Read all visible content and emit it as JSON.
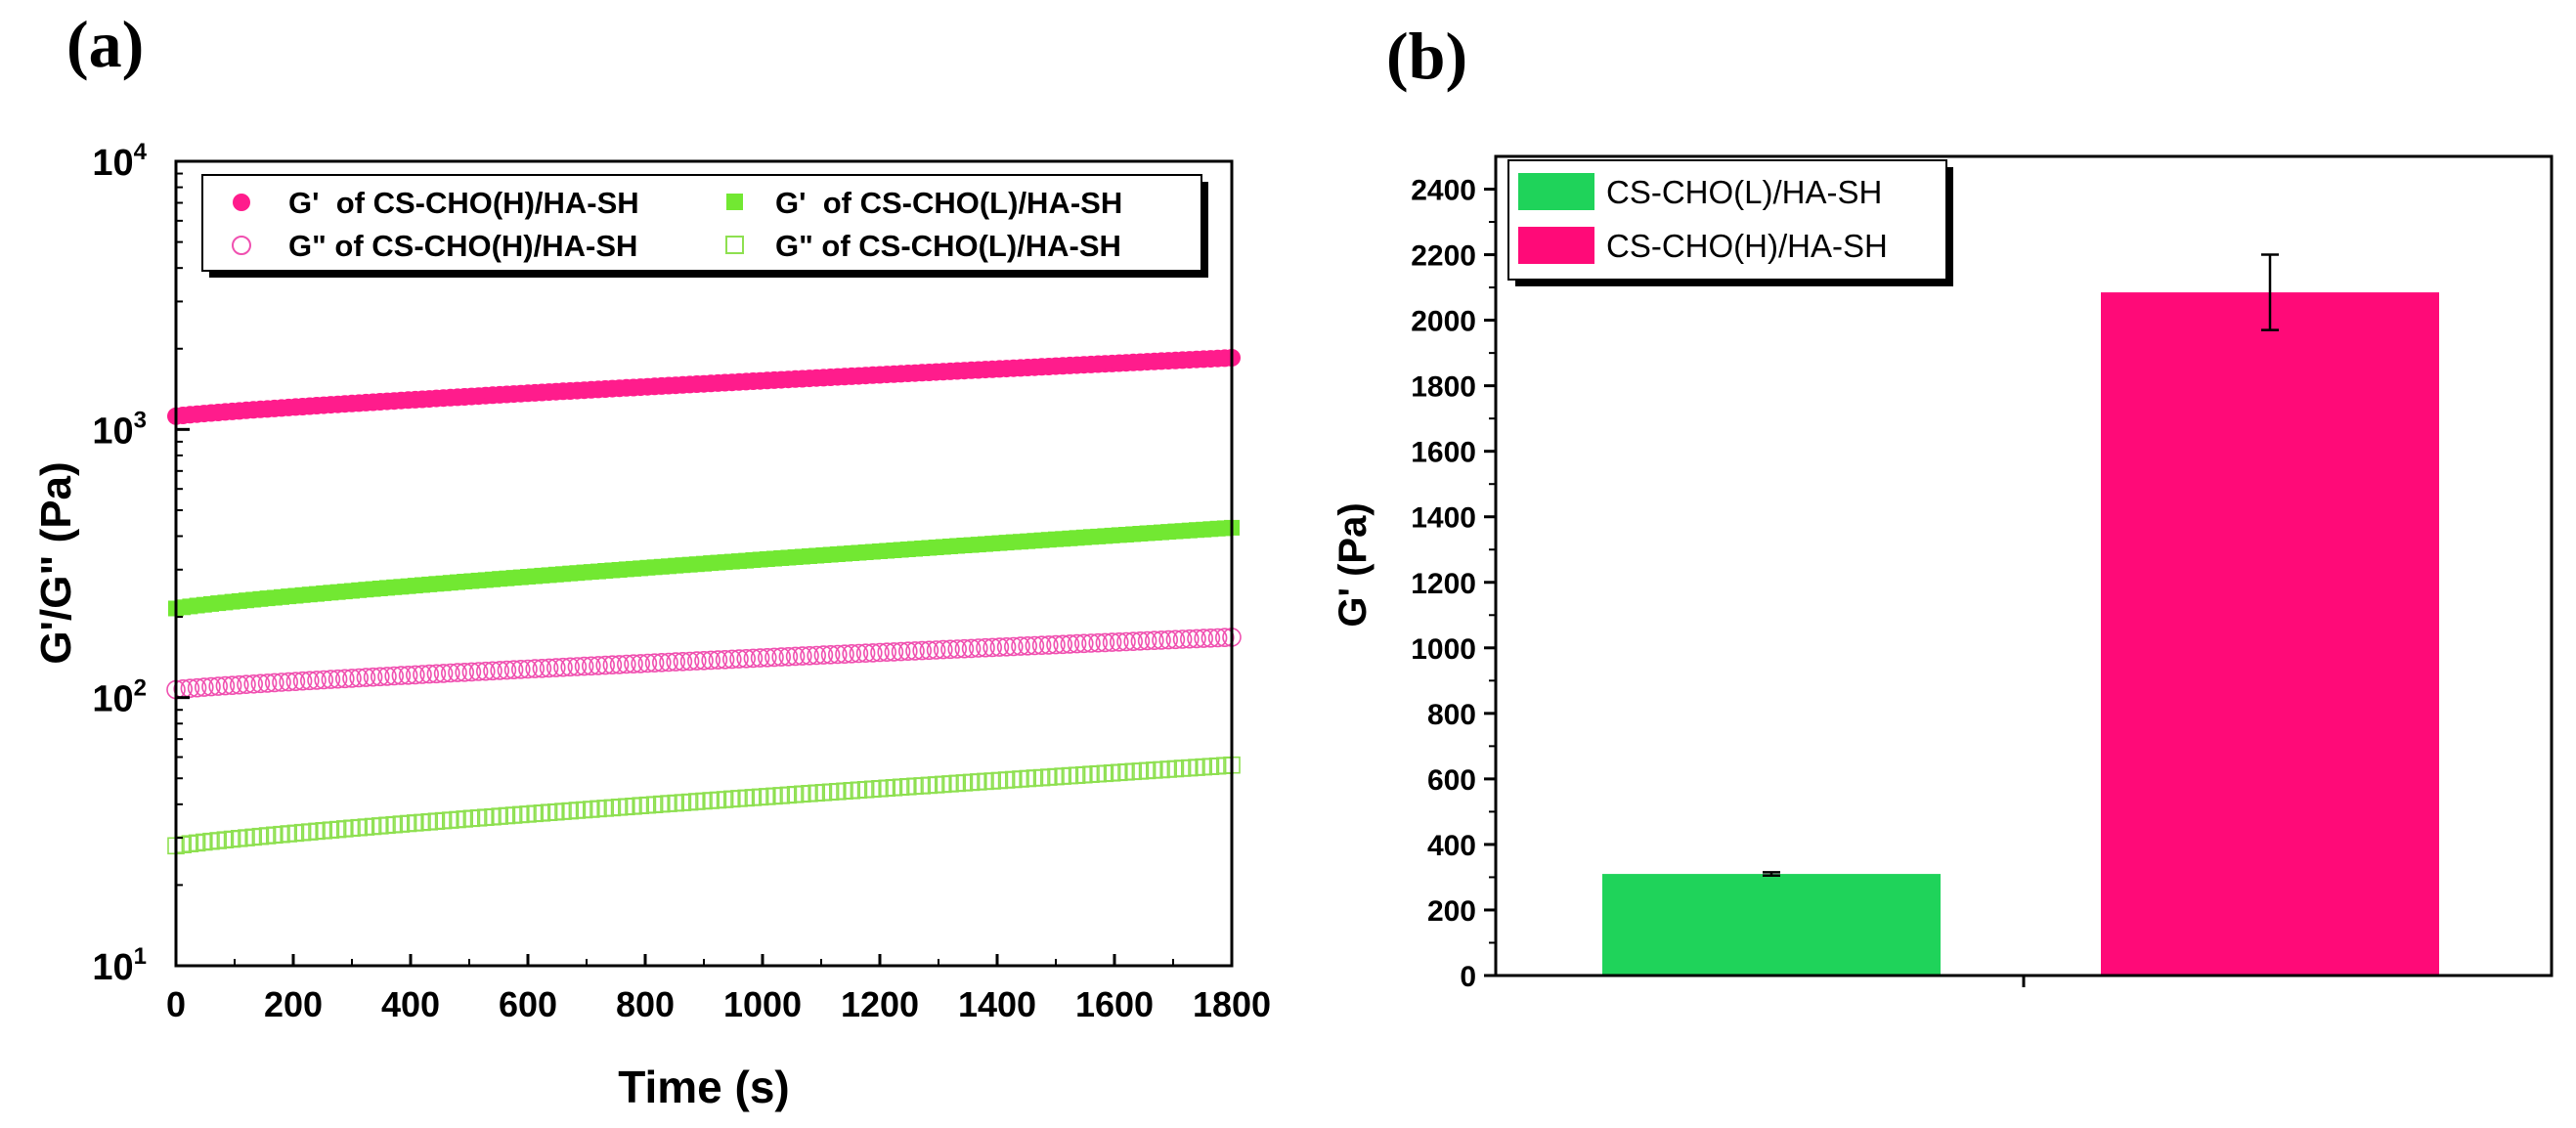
{
  "panel_labels": {
    "a": "(a)",
    "b": "(b)"
  },
  "colors": {
    "pink": "#FF1C8C",
    "pink_open": "#F050B0",
    "green": "#72E832",
    "green_open": "#8EE050",
    "bar_green": "#1FD35A",
    "bar_pink": "#FF0A78"
  },
  "chart_data": [
    {
      "id": "a",
      "type": "scatter",
      "title": "",
      "xlabel": "Time (s)",
      "ylabel": "G'/G\" (Pa)",
      "xlim": [
        0,
        1800
      ],
      "ylim": [
        10,
        10000
      ],
      "yscale": "log",
      "xticks": [
        "0",
        "200",
        "400",
        "600",
        "800",
        "1000",
        "1200",
        "1400",
        "1600",
        "1800"
      ],
      "yticks": [
        {
          "base": "10",
          "exp": "1"
        },
        {
          "base": "10",
          "exp": "2"
        },
        {
          "base": "10",
          "exp": "3"
        },
        {
          "base": "10",
          "exp": "4"
        }
      ],
      "legend_position": "top-left",
      "series": [
        {
          "name": "G'  of CS-CHO(H)/HA-SH",
          "marker": "circle",
          "filled": true,
          "color": "#FF1C8C",
          "start": 1120,
          "end": 1850
        },
        {
          "name": "G\" of CS-CHO(H)/HA-SH",
          "marker": "circle",
          "filled": false,
          "color": "#F050B0",
          "start": 107,
          "end": 168
        },
        {
          "name": "G'  of CS-CHO(L)/HA-SH",
          "marker": "square",
          "filled": true,
          "color": "#72E832",
          "start": 215,
          "end": 430
        },
        {
          "name": "G\" of CS-CHO(L)/HA-SH",
          "marker": "square",
          "filled": false,
          "color": "#8EE050",
          "start": 28,
          "end": 56
        }
      ]
    },
    {
      "id": "b",
      "type": "bar",
      "title": "",
      "xlabel": "",
      "ylabel": "G' (Pa)",
      "ylim": [
        0,
        2500
      ],
      "yticks": [
        "0",
        "200",
        "400",
        "600",
        "800",
        "1000",
        "1200",
        "1400",
        "1600",
        "1800",
        "2000",
        "2200",
        "2400"
      ],
      "legend_position": "top-left",
      "categories": [
        "CS-CHO(L)/HA-SH",
        "CS-CHO(H)/HA-SH"
      ],
      "values": [
        310,
        2085
      ],
      "errors": [
        5,
        115
      ],
      "bar_colors": [
        "#1FD35A",
        "#FF0A78"
      ]
    }
  ]
}
